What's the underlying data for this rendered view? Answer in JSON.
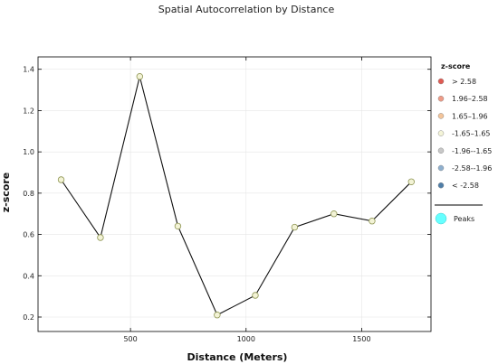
{
  "chart_data": {
    "type": "line",
    "title": "Spatial Autocorrelation by Distance",
    "xlabel": "Distance (Meters)",
    "ylabel": "z-score",
    "xlim": [
      100,
      1800
    ],
    "ylim": [
      0.13,
      1.46
    ],
    "x_ticks": [
      500,
      1000,
      1500
    ],
    "y_ticks": [
      0.2,
      0.4,
      0.6,
      0.8,
      1.0,
      1.2,
      1.4
    ],
    "grid": true,
    "series": [
      {
        "x": [
          200,
          370,
          540,
          705,
          875,
          1040,
          1210,
          1380,
          1545,
          1715
        ],
        "y": [
          0.865,
          0.585,
          1.365,
          0.64,
          0.21,
          0.305,
          0.635,
          0.7,
          0.665,
          0.855
        ]
      }
    ],
    "marker_colors": {
      "line": "#111111",
      "point_fill": "#f3f3d6",
      "point_stroke": "#8f9654"
    },
    "legend": {
      "position": "right",
      "title": "z-score",
      "items": [
        {
          "label": "> 2.58",
          "color": "#e05a52"
        },
        {
          "label": "1.96–2.58",
          "color": "#ef9b87"
        },
        {
          "label": "1.65–1.96",
          "color": "#f3c49a"
        },
        {
          "label": "-1.65–1.65",
          "color": "#f4f4d8"
        },
        {
          "label": "-1.96--1.65",
          "color": "#c8c8c8"
        },
        {
          "label": "-2.58--1.96",
          "color": "#8fb0cf"
        },
        {
          "label": "< -2.58",
          "color": "#4f7ea8"
        }
      ],
      "peaks_label": "Peaks",
      "peaks_color": "#66ffff"
    }
  }
}
